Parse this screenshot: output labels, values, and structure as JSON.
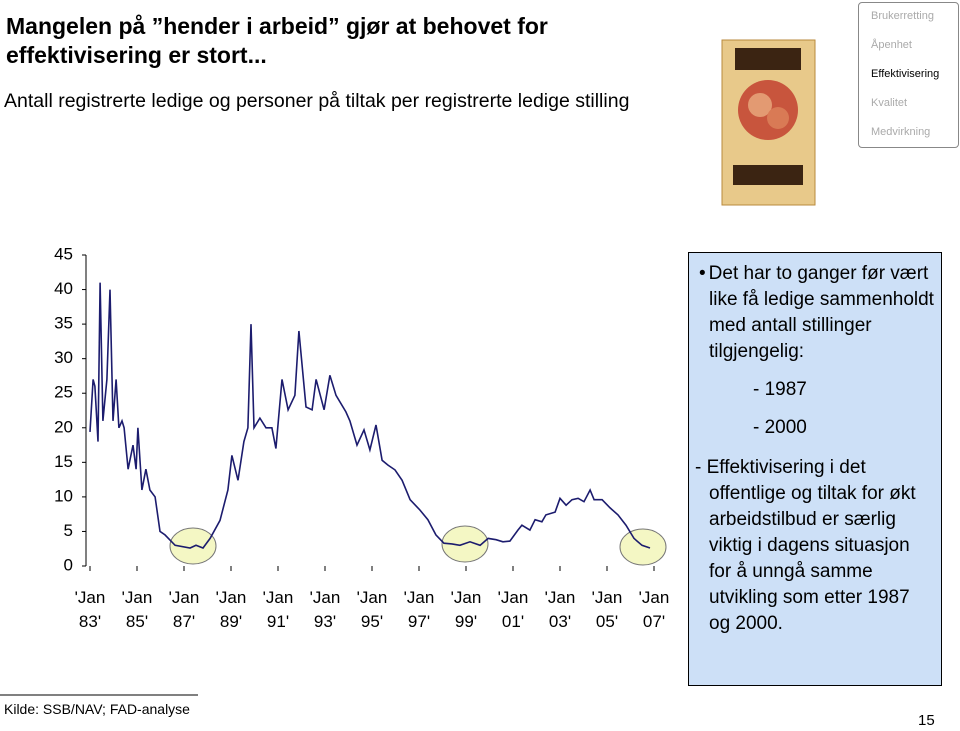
{
  "header": {
    "title": "Mangelen på ”hender i arbeid” gjør at behovet for effektivisering er stort...",
    "subtitle": "Antall registrerte ledige og personer på tiltak per registrerte ledige stilling"
  },
  "nav": [
    "Brukerretting",
    "Åpenhet",
    "Effektivisering",
    "Kvalitet",
    "Medvirkning"
  ],
  "chart_data": {
    "type": "line",
    "color": "#1c1c6e",
    "x": [
      1983.0,
      1983.13,
      1983.21,
      1983.34,
      1983.43,
      1983.55,
      1983.72,
      1983.85,
      1983.98,
      1984.11,
      1984.23,
      1984.36,
      1984.45,
      1984.62,
      1984.83,
      1984.96,
      1985.04,
      1985.21,
      1985.38,
      1985.55,
      1985.77,
      1985.98,
      1986.19,
      1986.62,
      1987.26,
      1987.51,
      1987.81,
      1988.11,
      1988.53,
      1988.87,
      1989.04,
      1989.3,
      1989.55,
      1989.72,
      1989.85,
      1989.98,
      1990.23,
      1990.49,
      1990.74,
      1990.91,
      1991.17,
      1991.43,
      1991.72,
      1991.89,
      1992.19,
      1992.45,
      1992.62,
      1992.96,
      1993.21,
      1993.47,
      1993.89,
      1994.06,
      1994.36,
      1994.66,
      1994.91,
      1995.17,
      1995.43,
      1995.68,
      1995.98,
      1996.28,
      1996.62,
      1997.04,
      1997.38,
      1997.72,
      1998.06,
      1998.4,
      1998.74,
      1999.17,
      1999.6,
      1999.94,
      2000.28,
      2000.57,
      2000.87,
      2001.21,
      2001.38,
      2001.72,
      2001.94,
      2002.23,
      2002.4,
      2002.79,
      2003.0,
      2003.26,
      2003.51,
      2003.77,
      2004.02,
      2004.28,
      2004.45,
      2004.79,
      2005.13,
      2005.47,
      2005.81,
      2006.15,
      2006.49,
      2006.83
    ],
    "values": [
      19.4,
      27,
      26,
      18,
      41,
      21,
      27,
      40,
      21,
      27,
      20,
      21,
      20,
      14,
      17.5,
      14,
      20,
      11,
      14,
      11,
      10,
      5,
      4.5,
      3,
      2.6,
      3,
      2.6,
      4,
      6.6,
      11,
      16,
      12.4,
      18,
      20,
      35,
      20,
      21.4,
      20,
      20,
      17,
      27,
      22.6,
      24.7,
      34,
      23,
      22.6,
      27,
      22.6,
      27.6,
      24.7,
      22.3,
      21,
      17.5,
      19.7,
      16.8,
      20.4,
      15.3,
      14.6,
      13.9,
      12.4,
      9.6,
      8.1,
      6.7,
      4.5,
      3.3,
      3.2,
      3,
      3.5,
      3,
      4,
      3.8,
      3.5,
      3.6,
      5.2,
      5.9,
      5.2,
      6.7,
      6.4,
      7.4,
      7.8,
      9.8,
      8.8,
      9.6,
      9.8,
      9.3,
      11,
      9.6,
      9.6,
      8.4,
      7.4,
      5.9,
      4,
      3,
      2.6
    ],
    "xlim": [
      1983,
      2007.6
    ],
    "xticks": [
      {
        "value": 1983,
        "label": "'Jan 83'"
      },
      {
        "value": 1985,
        "label": "'Jan 85'"
      },
      {
        "value": 1987,
        "label": "'Jan 87'"
      },
      {
        "value": 1989,
        "label": "'Jan 89'"
      },
      {
        "value": 1991,
        "label": "'Jan 91'"
      },
      {
        "value": 1993,
        "label": "'Jan 93'"
      },
      {
        "value": 1995,
        "label": "'Jan 95'"
      },
      {
        "value": 1997,
        "label": "'Jan 97'"
      },
      {
        "value": 1999,
        "label": "'Jan 99'"
      },
      {
        "value": 2001,
        "label": "'Jan 01'"
      },
      {
        "value": 2003,
        "label": "'Jan 03'"
      },
      {
        "value": 2005,
        "label": "'Jan 05'"
      },
      {
        "value": 2007,
        "label": "'Jan 07'"
      }
    ],
    "ylim": [
      0,
      45
    ],
    "yticks": [
      0,
      5,
      10,
      15,
      20,
      25,
      30,
      35,
      40,
      45
    ]
  },
  "textbox": {
    "bullet": "Det har to ganger før vært like få ledige sammenholdt med antall stillinger tilgjengelig:",
    "items": [
      "- 1987",
      "- 2000"
    ],
    "note": "- Effektivisering i det offentlige og tiltak for økt arbeidstilbud er særlig viktig i dagens situasjon for å unngå samme utvikling som etter 1987 og 2000."
  },
  "footer": {
    "source": "Kilde: SSB/NAV; FAD-analyse",
    "page": "15"
  }
}
